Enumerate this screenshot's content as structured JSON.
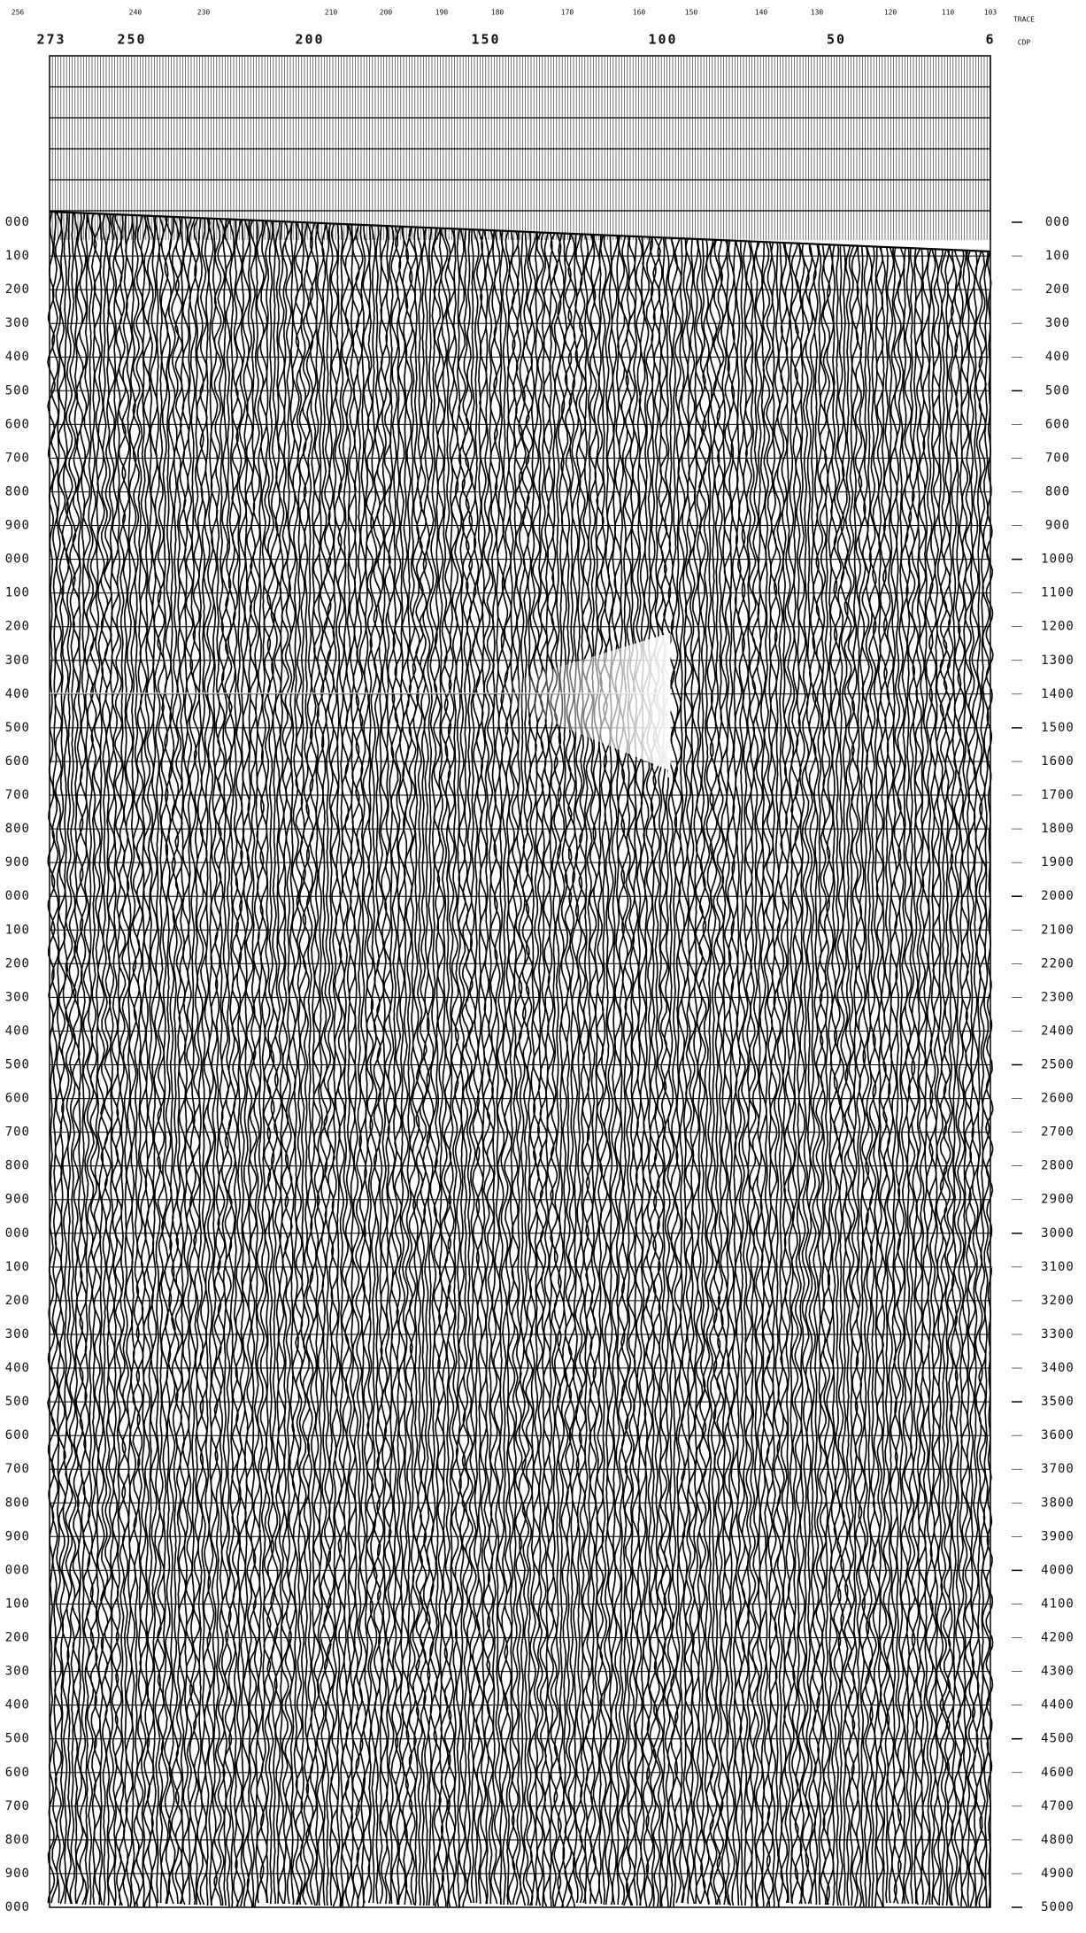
{
  "top_trace_labels": [
    "256",
    "240",
    "230",
    "210",
    "200",
    "190",
    "180",
    "170",
    "160",
    "150",
    "140",
    "130",
    "120",
    "110",
    "103"
  ],
  "trace_caption": "TRACE",
  "cdp_labels": [
    "273",
    "250",
    "200",
    "150",
    "100",
    "50",
    "6"
  ],
  "cdp_caption": "CDP",
  "left_time_labels": [
    "000",
    "100",
    "200",
    "300",
    "400",
    "500",
    "600",
    "700",
    "800",
    "900",
    "000",
    "100",
    "200",
    "300",
    "400",
    "500",
    "600",
    "700",
    "800",
    "900",
    "000",
    "100",
    "200",
    "300",
    "400",
    "500",
    "600",
    "700",
    "800",
    "900",
    "000",
    "100",
    "200",
    "300",
    "400",
    "500",
    "600",
    "700",
    "800",
    "900",
    "000",
    "100",
    "200",
    "300",
    "400",
    "500",
    "600",
    "700",
    "800",
    "900",
    "000"
  ],
  "right_time_labels": [
    "000",
    "100",
    "200",
    "300",
    "400",
    "500",
    "600",
    "700",
    "800",
    "900",
    "1000",
    "1100",
    "1200",
    "1300",
    "1400",
    "1500",
    "1600",
    "1700",
    "1800",
    "1900",
    "2000",
    "2100",
    "2200",
    "2300",
    "2400",
    "2500",
    "2600",
    "2700",
    "2800",
    "2900",
    "3000",
    "3100",
    "3200",
    "3300",
    "3400",
    "3500",
    "3600",
    "3700",
    "3800",
    "3900",
    "4000",
    "4100",
    "4200",
    "4300",
    "4400",
    "4500",
    "4600",
    "4700",
    "4800",
    "4900",
    "5000"
  ]
}
